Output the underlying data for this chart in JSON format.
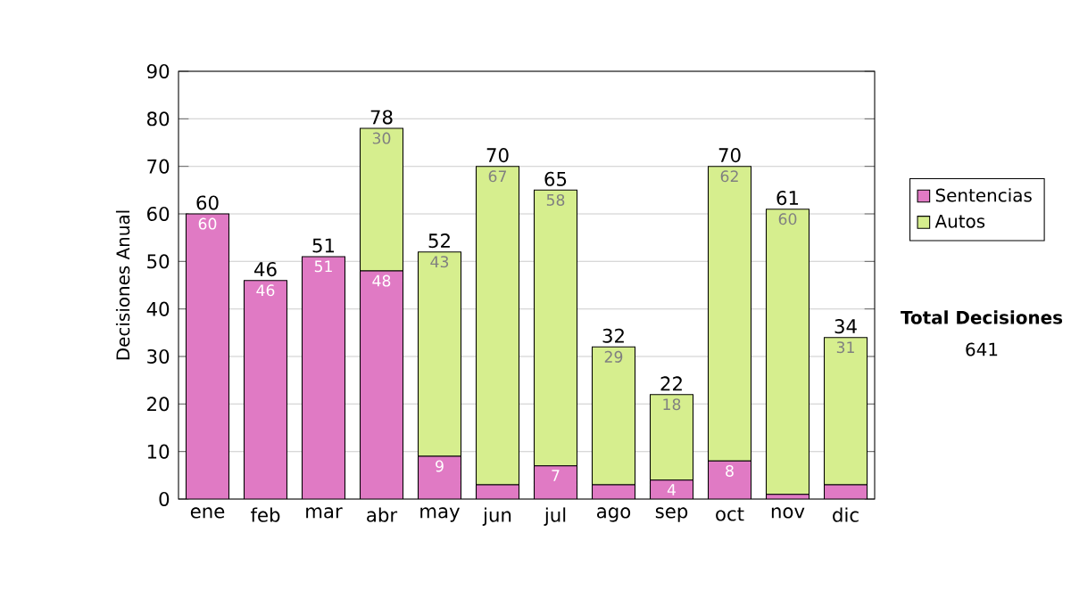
{
  "chart_data": {
    "type": "bar",
    "stacked": true,
    "ylabel": "Decisiones Anual",
    "categories": [
      "ene",
      "feb",
      "mar",
      "abr",
      "may",
      "jun",
      "jul",
      "ago",
      "sep",
      "oct",
      "nov",
      "dic"
    ],
    "series": [
      {
        "name": "Sentencias",
        "color": "#e07ac4",
        "values": [
          60,
          46,
          51,
          48,
          9,
          3,
          7,
          3,
          4,
          8,
          1,
          3
        ],
        "value_labels": [
          "60",
          "46",
          "51",
          "48",
          "9",
          null,
          "7",
          null,
          "4",
          "8",
          null,
          null
        ]
      },
      {
        "name": "Autos",
        "color": "#d6ee8e",
        "values": [
          0,
          0,
          0,
          30,
          43,
          67,
          58,
          29,
          18,
          62,
          60,
          31
        ],
        "value_labels": [
          null,
          null,
          null,
          "30",
          "43",
          "67",
          "58",
          "29",
          "18",
          "62",
          "60",
          "31"
        ]
      }
    ],
    "totals": [
      "60",
      "46",
      "51",
      "78",
      "52",
      "70",
      "65",
      "32",
      "22",
      "70",
      "61",
      "34"
    ],
    "ylim": [
      0,
      90
    ],
    "yticks": [
      0,
      10,
      20,
      30,
      40,
      50,
      60,
      70,
      80,
      90
    ],
    "grid": "y",
    "legend": "right",
    "annotations": [
      "Total Decisiones",
      "641"
    ]
  }
}
